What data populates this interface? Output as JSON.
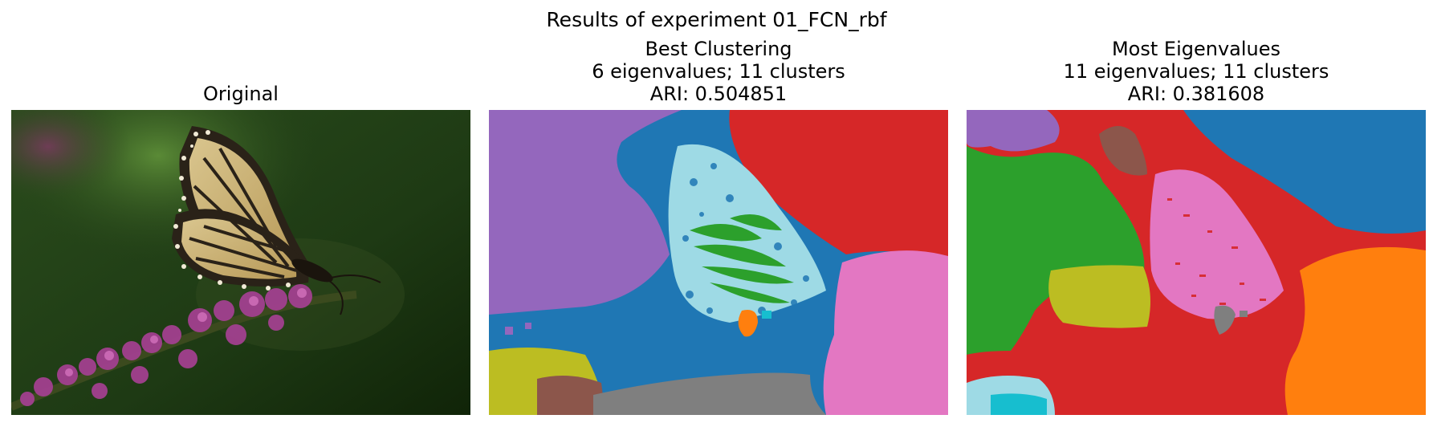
{
  "figure": {
    "title": "Results of experiment 01_FCN_rbf"
  },
  "chart_data": [
    {
      "type": "image",
      "title": "Original",
      "subtitle_lines": [],
      "content": "photograph"
    },
    {
      "type": "image",
      "title": "Best Clustering",
      "subtitle_lines": [
        "6 eigenvalues; 11 clusters",
        "ARI: 0.504851"
      ],
      "eigenvalues": 6,
      "clusters": 11,
      "ari": 0.504851,
      "content": "segmentation"
    },
    {
      "type": "image",
      "title": "Most Eigenvalues",
      "subtitle_lines": [
        "11 eigenvalues; 11 clusters",
        "ARI: 0.381608"
      ],
      "eigenvalues": 11,
      "clusters": 11,
      "ari": 0.381608,
      "content": "segmentation"
    }
  ],
  "colors": {
    "blue": "#1f77b4",
    "orange": "#ff7f0e",
    "green": "#2ca02c",
    "red": "#d62728",
    "purple": "#9467bd",
    "brown": "#8c564b",
    "pink": "#e377c2",
    "gray": "#7f7f7f",
    "olive": "#bcbd22",
    "cyan": "#17becf",
    "lightblue": "#9edae5"
  }
}
